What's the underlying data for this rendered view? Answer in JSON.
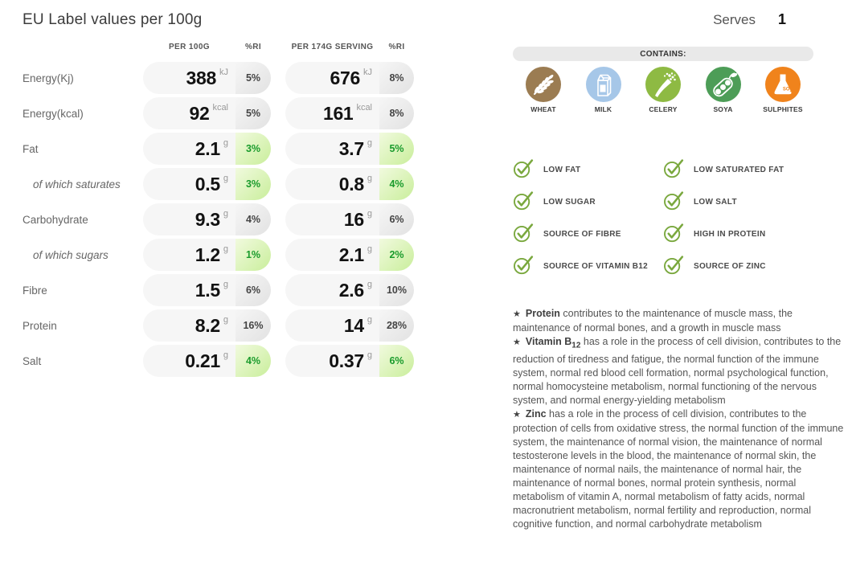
{
  "title": "EU Label values per 100g",
  "serves": {
    "label": "Serves",
    "value": "1"
  },
  "table": {
    "columns": [
      "PER 100G",
      "%RI",
      "PER 174G SERVING",
      "%RI"
    ],
    "rows": [
      {
        "label": "Energy(Kj)",
        "indent": false,
        "per100": {
          "value": "388",
          "unit": "kJ"
        },
        "ri100": "5%",
        "ri100_state": "gray",
        "serving": {
          "value": "676",
          "unit": "kJ"
        },
        "riServing": "8%",
        "riServing_state": "gray"
      },
      {
        "label": "Energy(kcal)",
        "indent": false,
        "per100": {
          "value": "92",
          "unit": "kcal"
        },
        "ri100": "5%",
        "ri100_state": "gray",
        "serving": {
          "value": "161",
          "unit": "kcal"
        },
        "riServing": "8%",
        "riServing_state": "gray"
      },
      {
        "label": "Fat",
        "indent": false,
        "per100": {
          "value": "2.1",
          "unit": "g"
        },
        "ri100": "3%",
        "ri100_state": "green",
        "serving": {
          "value": "3.7",
          "unit": "g"
        },
        "riServing": "5%",
        "riServing_state": "green"
      },
      {
        "label": "of which saturates",
        "indent": true,
        "per100": {
          "value": "0.5",
          "unit": "g"
        },
        "ri100": "3%",
        "ri100_state": "green",
        "serving": {
          "value": "0.8",
          "unit": "g"
        },
        "riServing": "4%",
        "riServing_state": "green"
      },
      {
        "label": "Carbohydrate",
        "indent": false,
        "per100": {
          "value": "9.3",
          "unit": "g"
        },
        "ri100": "4%",
        "ri100_state": "gray",
        "serving": {
          "value": "16",
          "unit": "g"
        },
        "riServing": "6%",
        "riServing_state": "gray"
      },
      {
        "label": "of which sugars",
        "indent": true,
        "per100": {
          "value": "1.2",
          "unit": "g"
        },
        "ri100": "1%",
        "ri100_state": "green",
        "serving": {
          "value": "2.1",
          "unit": "g"
        },
        "riServing": "2%",
        "riServing_state": "green"
      },
      {
        "label": "Fibre",
        "indent": false,
        "per100": {
          "value": "1.5",
          "unit": "g"
        },
        "ri100": "6%",
        "ri100_state": "gray",
        "serving": {
          "value": "2.6",
          "unit": "g"
        },
        "riServing": "10%",
        "riServing_state": "gray"
      },
      {
        "label": "Protein",
        "indent": false,
        "per100": {
          "value": "8.2",
          "unit": "g"
        },
        "ri100": "16%",
        "ri100_state": "gray",
        "serving": {
          "value": "14",
          "unit": "g"
        },
        "riServing": "28%",
        "riServing_state": "gray"
      },
      {
        "label": "Salt",
        "indent": false,
        "per100": {
          "value": "0.21",
          "unit": "g"
        },
        "ri100": "4%",
        "ri100_state": "green",
        "serving": {
          "value": "0.37",
          "unit": "g"
        },
        "riServing": "6%",
        "riServing_state": "green"
      }
    ]
  },
  "contains": {
    "label": "CONTAINS:",
    "allergens": [
      {
        "name": "WHEAT",
        "icon": "wheat-icon",
        "color": "#9b7c52"
      },
      {
        "name": "MILK",
        "icon": "milk-icon",
        "color": "#a6c7e8"
      },
      {
        "name": "CELERY",
        "icon": "celery-icon",
        "color": "#8eba43"
      },
      {
        "name": "SOYA",
        "icon": "soya-icon",
        "color": "#4d9d57"
      },
      {
        "name": "SULPHITES",
        "icon": "sulphites-icon",
        "color": "#f0831c"
      }
    ]
  },
  "claims": [
    {
      "label": "LOW FAT"
    },
    {
      "label": "LOW SATURATED FAT"
    },
    {
      "label": "LOW SUGAR"
    },
    {
      "label": "LOW SALT"
    },
    {
      "label": "SOURCE OF FIBRE"
    },
    {
      "label": "HIGH IN PROTEIN"
    },
    {
      "label": "SOURCE OF VITAMIN B12"
    },
    {
      "label": "SOURCE OF ZINC"
    }
  ],
  "benefits": [
    {
      "bullet": "★",
      "segments": [
        {
          "text": "Protein",
          "bold": true
        },
        {
          "text": " contributes to the maintenance of muscle mass, the maintenance of normal bones, and a growth in muscle mass",
          "bold": false
        }
      ]
    },
    {
      "bullet": "★",
      "segments": [
        {
          "text": "Vitamin B",
          "bold": true
        },
        {
          "text": "12",
          "bold": true,
          "sub": true
        },
        {
          "text": " has a role in the process of cell division, contributes to the reduction of tiredness and fatigue, the normal function of the immune system, normal red blood cell formation, normal psychological function, normal homocysteine metabolism, normal functioning of the nervous system, and normal energy-yielding metabolism",
          "bold": false
        }
      ]
    },
    {
      "bullet": "★",
      "segments": [
        {
          "text": "Zinc",
          "bold": true
        },
        {
          "text": " has a role in the process of cell division, contributes to the protection of cells from oxidative stress, the normal function of the immune system, the maintenance of normal vision, the maintenance of normal testosterone levels in the blood, the maintenance of normal skin, the maintenance of normal nails, the maintenance of normal hair, the maintenance of normal bones, normal protein synthesis, normal metabolism of vitamin A, normal metabolism of fatty acids, normal macronutrient metabolism, normal fertility and reproduction, normal cognitive function, and normal carbohydrate metabolism",
          "bold": false
        }
      ]
    }
  ],
  "colors": {
    "check_green": "#7aa83e",
    "ri_green_text": "#1a9b2c",
    "ri_green_bg_start": "#f1fade",
    "ri_green_bg_end": "#c9ee9b",
    "ri_gray_bg_start": "#f6f6f6",
    "ri_gray_bg_end": "#e2e2e2",
    "pill_bg": "#f6f6f6",
    "banner_bg": "#e9e9e9"
  }
}
